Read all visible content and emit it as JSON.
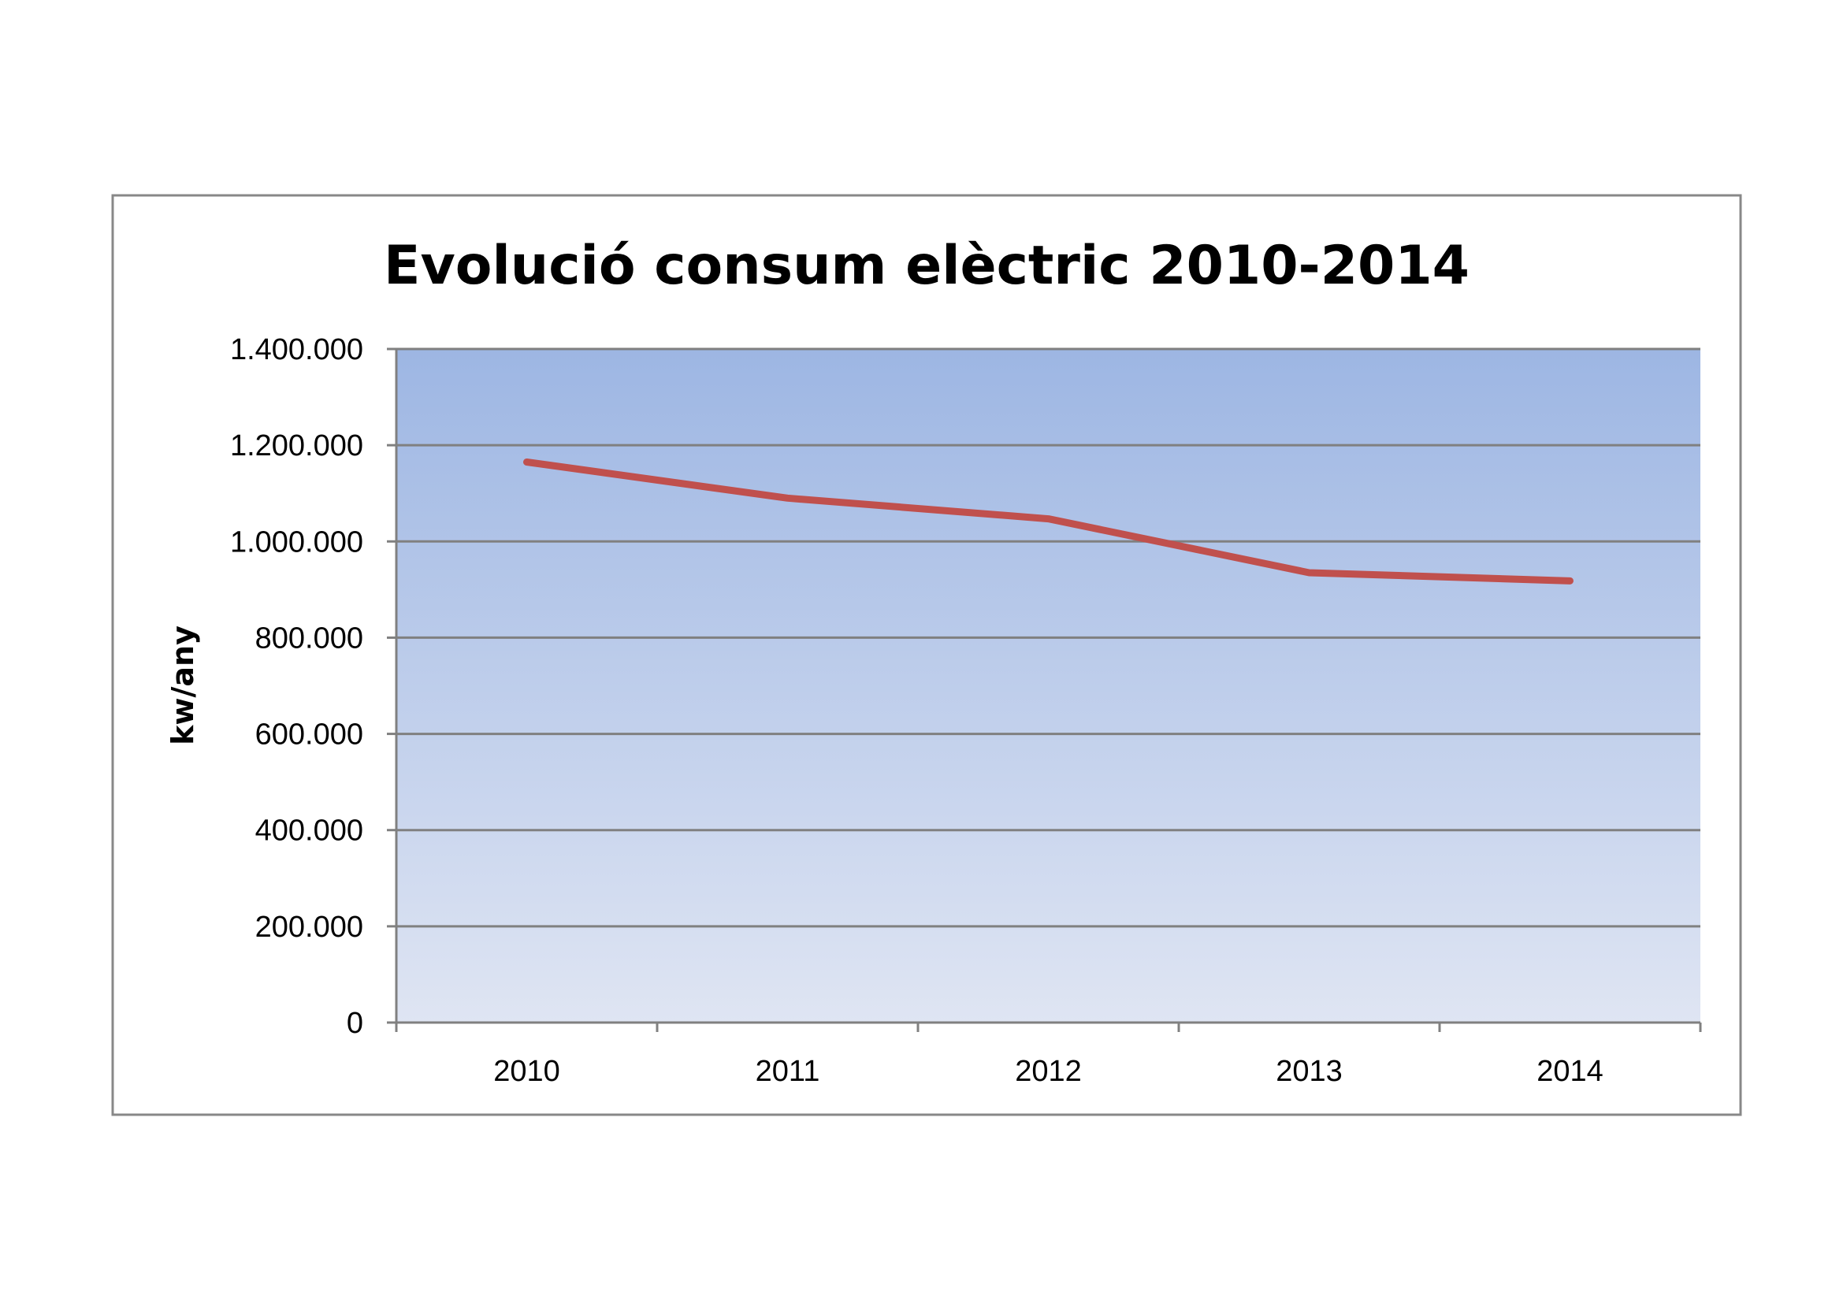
{
  "chart_data": {
    "type": "line",
    "title": "Evolució consum elèctric 2010-2014",
    "xlabel": "",
    "ylabel": "kw/any",
    "categories": [
      "2010",
      "2011",
      "2012",
      "2013",
      "2014"
    ],
    "series": [
      {
        "values": [
          1165000,
          1090000,
          1047000,
          935000,
          918000
        ],
        "color": "#c0504d"
      }
    ],
    "ylim": [
      0,
      1400000
    ],
    "yticks": [
      0,
      200000,
      400000,
      600000,
      800000,
      1000000,
      1200000,
      1400000
    ],
    "ytick_labels": [
      "0",
      "200.000",
      "400.000",
      "600.000",
      "800.000",
      "1.000.000",
      "1.200.000",
      "1.400.000"
    ],
    "grid": true,
    "legend": "none",
    "colors": {
      "line": "#c0504d",
      "plot_gradient_top": "#9db6e3",
      "plot_gradient_bottom": "#dfe5f3",
      "gridline": "#808080",
      "frame_border": "#888888"
    }
  }
}
